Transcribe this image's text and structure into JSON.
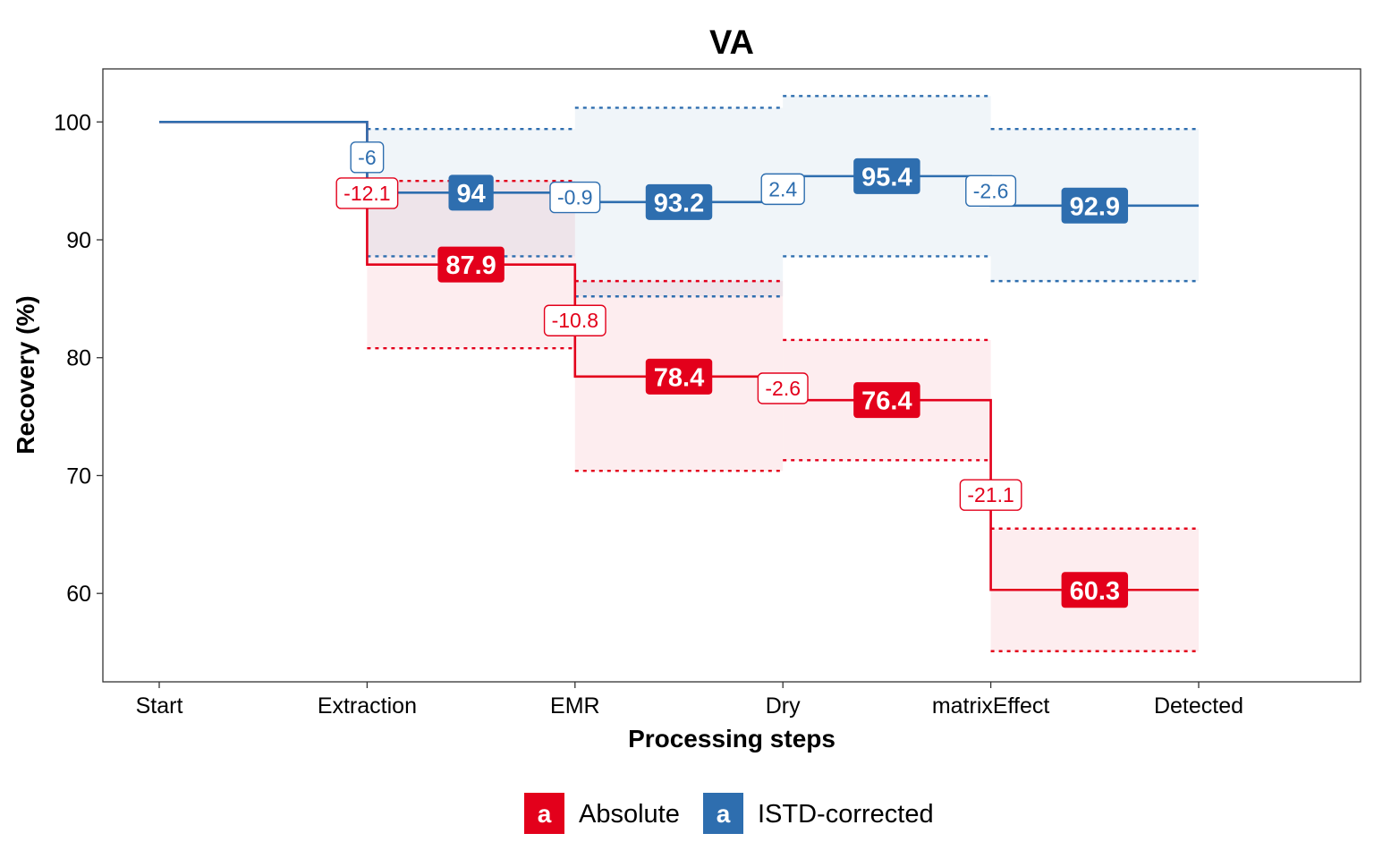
{
  "chart_data": {
    "type": "line",
    "title": "VA",
    "xlabel": "Processing steps",
    "ylabel": "Recovery (%)",
    "categories": [
      "Start",
      "Extraction",
      "EMR",
      "Dry",
      "matrixEffect",
      "Detected"
    ],
    "ylim": [
      52.5,
      104.5
    ],
    "yticks": [
      60,
      70,
      80,
      90,
      100
    ],
    "grid": false,
    "legend_position": "bottom",
    "legend_key_text": "a",
    "series": [
      {
        "name": "Absolute",
        "color": "#E3001B",
        "steps": [
          {
            "value": 87.9,
            "delta": "-12.1",
            "lower": 80.8,
            "upper": 95.0
          },
          {
            "value": 78.4,
            "delta": "-10.8",
            "lower": 70.4,
            "upper": 86.5
          },
          {
            "value": 76.4,
            "delta": "-2.6",
            "lower": 71.3,
            "upper": 81.5
          },
          {
            "value": 60.3,
            "delta": "-21.1",
            "lower": 55.1,
            "upper": 65.5
          }
        ]
      },
      {
        "name": "ISTD-corrected",
        "color": "#2E6EAF",
        "steps": [
          {
            "value": 94,
            "delta": "-6",
            "lower": 88.6,
            "upper": 99.4
          },
          {
            "value": 93.2,
            "delta": "-0.9",
            "lower": 85.2,
            "upper": 101.2
          },
          {
            "value": 95.4,
            "delta": "2.4",
            "lower": 88.6,
            "upper": 102.2
          },
          {
            "value": 92.9,
            "delta": "-2.6",
            "lower": 86.5,
            "upper": 99.4
          }
        ]
      }
    ]
  }
}
